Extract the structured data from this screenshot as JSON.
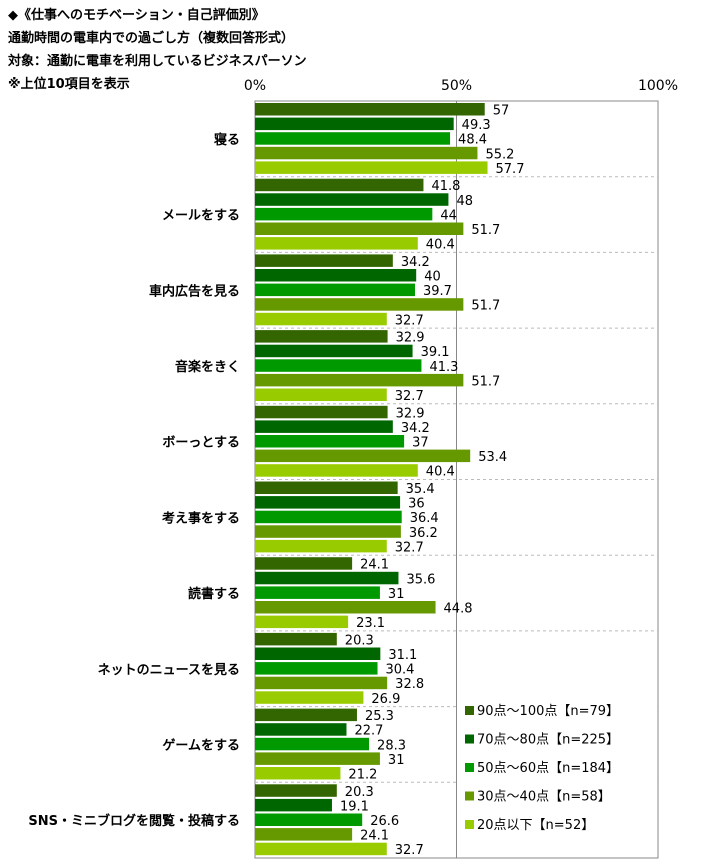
{
  "header": {
    "line1": "◆《仕事へのモチベーション・自己評価別》",
    "line2": "通勤時間の電車内での過ごし方（複数回答形式）",
    "line3": "対象：通勤に電車を利用しているビジネスパーソン",
    "line4": "※上位10項目を表示"
  },
  "chart_data": {
    "type": "bar",
    "orientation": "horizontal",
    "title": "通勤時間の電車内での過ごし方（複数回答形式）",
    "xlim": [
      0,
      100
    ],
    "x_ticks": [
      "0%",
      "50%",
      "100%"
    ],
    "categories": [
      "寝る",
      "メールをする",
      "車内広告を見る",
      "音楽をきく",
      "ボーっとする",
      "考え事をする",
      "読書する",
      "ネットのニュースを見る",
      "ゲームをする",
      "SNS・ミニブログを閲覧・投稿する"
    ],
    "legend_position": "bottom-right",
    "series": [
      {
        "name": "90点～100点【n=79】",
        "color": "#336600",
        "values": [
          57.0,
          41.8,
          34.2,
          32.9,
          32.9,
          35.4,
          24.1,
          20.3,
          25.3,
          20.3
        ]
      },
      {
        "name": "70点～80点【n=225】",
        "color": "#006600",
        "values": [
          49.3,
          48.0,
          40.0,
          39.1,
          34.2,
          36.0,
          35.6,
          31.1,
          22.7,
          19.1
        ]
      },
      {
        "name": "50点～60点【n=184】",
        "color": "#009900",
        "values": [
          48.4,
          44.0,
          39.7,
          41.3,
          37.0,
          36.4,
          31.0,
          30.4,
          28.3,
          26.6
        ]
      },
      {
        "name": "30点～40点【n=58】",
        "color": "#669900",
        "values": [
          55.2,
          51.7,
          51.7,
          51.7,
          53.4,
          36.2,
          44.8,
          32.8,
          31.0,
          24.1
        ]
      },
      {
        "name": "20点以下【n=52】",
        "color": "#99cc00",
        "values": [
          57.7,
          40.4,
          32.7,
          32.7,
          40.4,
          32.7,
          23.1,
          26.9,
          21.2,
          32.7
        ]
      }
    ]
  }
}
